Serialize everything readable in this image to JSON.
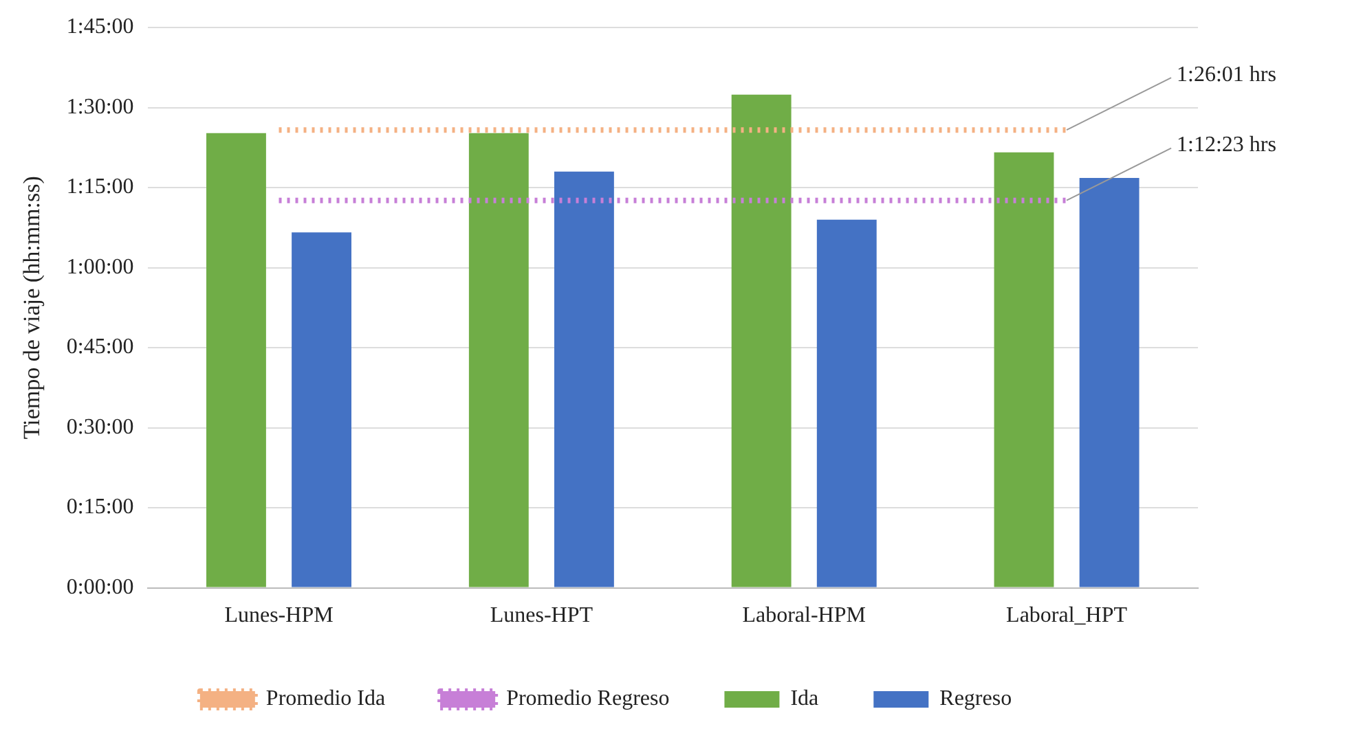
{
  "chart_data": {
    "type": "bar",
    "ylabel": "Tiempo de viaje (hh:mm:ss)",
    "categories": [
      "Lunes-HPM",
      "Lunes-HPT",
      "Laboral-HPM",
      "Laboral_HPT"
    ],
    "series": [
      {
        "name": "Ida",
        "color": "#70ad47",
        "values": [
          1.42,
          1.42,
          1.54,
          1.36
        ]
      },
      {
        "name": "Regreso",
        "color": "#4472c4",
        "values": [
          1.11,
          1.3,
          1.15,
          1.28
        ]
      },
      {
        "name": "Promedio Ida",
        "type": "line",
        "color": "#f4b183",
        "line_style": "dotted",
        "marker": "none",
        "values": [
          1.43,
          1.43,
          1.43,
          1.43
        ]
      },
      {
        "name": "Promedio Regreso",
        "type": "line",
        "color": "#c77fd7",
        "line_style": "dotted",
        "marker": "none",
        "values": [
          1.21,
          1.21,
          1.21,
          1.21
        ]
      }
    ],
    "ylim": [
      0,
      1.75
    ],
    "yticks": [
      {
        "value": 0,
        "label": "0:00:00"
      },
      {
        "value": 0.25,
        "label": "0:15:00"
      },
      {
        "value": 0.5,
        "label": "0:30:00"
      },
      {
        "value": 0.75,
        "label": "0:45:00"
      },
      {
        "value": 1,
        "label": "1:00:00"
      },
      {
        "value": 1.25,
        "label": "1:15:00"
      },
      {
        "value": 1.5,
        "label": "1:30:00"
      },
      {
        "value": 1.75,
        "label": "1:45:00"
      }
    ],
    "annotations": [
      {
        "text": "1:26:01 hrs",
        "x": "Laboral_HPT",
        "y": 1.43
      },
      {
        "text": "1:12:23 hrs",
        "x": "Laboral_HPT",
        "y": 1.21
      }
    ],
    "grid": "y",
    "legend": "bottom"
  }
}
